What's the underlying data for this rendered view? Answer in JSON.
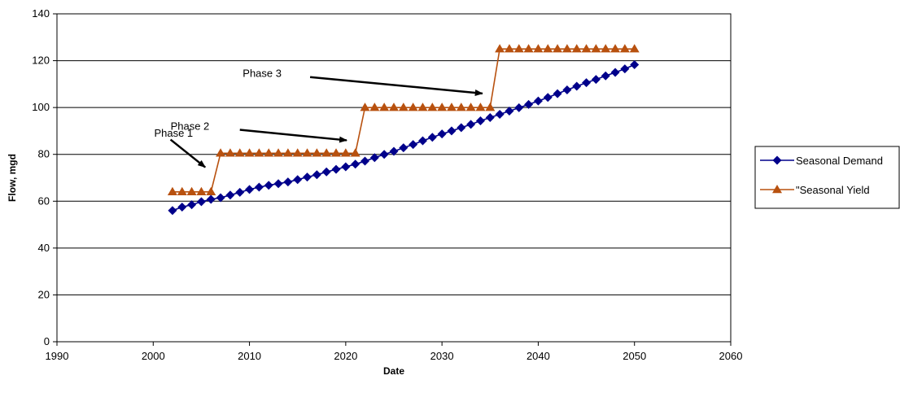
{
  "chart_data": {
    "type": "line",
    "title": "",
    "xlabel": "Date",
    "ylabel": "Flow, mgd",
    "xlim": [
      1990,
      2060
    ],
    "ylim": [
      0,
      140
    ],
    "xticks": [
      1990,
      2000,
      2010,
      2020,
      2030,
      2040,
      2050,
      2060
    ],
    "yticks": [
      0,
      20,
      40,
      60,
      80,
      100,
      120,
      140
    ],
    "grid": "horizontal",
    "legend_position": "right",
    "series": [
      {
        "name": "Seasonal Demand",
        "color": "#00008B",
        "marker": "diamond",
        "x": [
          2002,
          2003,
          2004,
          2005,
          2006,
          2007,
          2008,
          2009,
          2010,
          2011,
          2012,
          2013,
          2014,
          2015,
          2016,
          2017,
          2018,
          2019,
          2020,
          2021,
          2022,
          2023,
          2024,
          2025,
          2026,
          2027,
          2028,
          2029,
          2030,
          2031,
          2032,
          2033,
          2034,
          2035,
          2036,
          2037,
          2038,
          2039,
          2040,
          2041,
          2042,
          2043,
          2044,
          2045,
          2046,
          2047,
          2048,
          2049,
          2050
        ],
        "values": [
          56,
          57.5,
          58.5,
          59.8,
          60.8,
          61.5,
          62.6,
          63.8,
          65,
          66,
          66.8,
          67.5,
          68.2,
          69.2,
          70.3,
          71.3,
          72.5,
          73.6,
          74.7,
          75.8,
          77.1,
          78.6,
          80,
          81.3,
          82.8,
          84.2,
          85.8,
          87.3,
          88.7,
          90,
          91.4,
          92.8,
          94.3,
          95.7,
          97.1,
          98.5,
          99.9,
          101.3,
          102.8,
          104.3,
          105.9,
          107.5,
          109.1,
          110.6,
          112,
          113.5,
          115,
          116.5,
          118.3
        ]
      },
      {
        "name": "\"Seasonal Yield",
        "color": "#B8510F",
        "marker": "triangle",
        "x": [
          2002,
          2003,
          2004,
          2005,
          2006,
          2007,
          2008,
          2009,
          2010,
          2011,
          2012,
          2013,
          2014,
          2015,
          2016,
          2017,
          2018,
          2019,
          2020,
          2021,
          2022,
          2023,
          2024,
          2025,
          2026,
          2027,
          2028,
          2029,
          2030,
          2031,
          2032,
          2033,
          2034,
          2035,
          2036,
          2037,
          2038,
          2039,
          2040,
          2041,
          2042,
          2043,
          2044,
          2045,
          2046,
          2047,
          2048,
          2049,
          2050
        ],
        "values": [
          64,
          64,
          64,
          64,
          64,
          80.5,
          80.5,
          80.5,
          80.5,
          80.5,
          80.5,
          80.5,
          80.5,
          80.5,
          80.5,
          80.5,
          80.5,
          80.5,
          80.5,
          80.5,
          100,
          100,
          100,
          100,
          100,
          100,
          100,
          100,
          100,
          100,
          100,
          100,
          100,
          100,
          125,
          125,
          125,
          125,
          125,
          125,
          125,
          125,
          125,
          125,
          125,
          125,
          125,
          125,
          125
        ]
      }
    ],
    "annotations": [
      {
        "text": "Phase 1",
        "label_at": [
          2000.1,
          87.5
        ],
        "arrow_from": [
          2001.8,
          86.3
        ],
        "arrow_to": [
          2005.4,
          74.5
        ]
      },
      {
        "text": "Phase 2",
        "label_at": [
          2001.8,
          90.5
        ],
        "arrow_from": [
          2009.0,
          90.5
        ],
        "arrow_to": [
          2020.1,
          86.0
        ]
      },
      {
        "text": "Phase 3",
        "label_at": [
          2009.3,
          113.0
        ],
        "arrow_from": [
          2016.3,
          113.0
        ],
        "arrow_to": [
          2034.2,
          106.0
        ]
      }
    ]
  }
}
